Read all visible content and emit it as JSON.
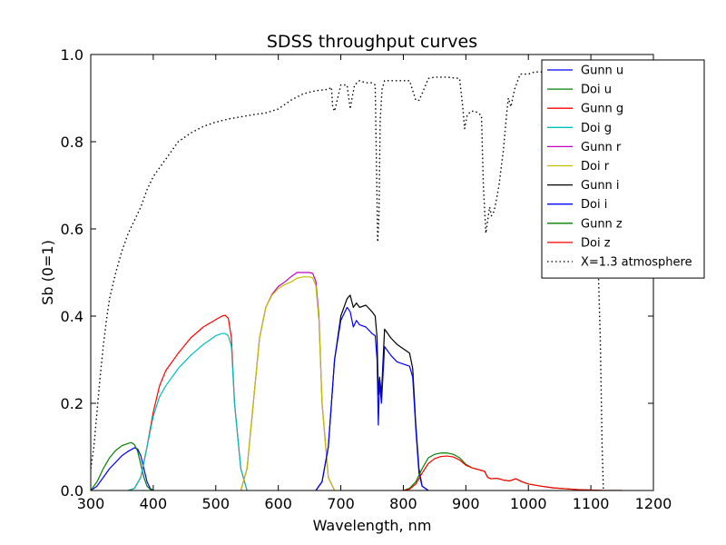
{
  "chart_data": {
    "type": "line",
    "title": "SDSS throughput curves",
    "xlabel": "Wavelength, nm",
    "ylabel": "Sb (0=1)",
    "xlim": [
      300,
      1200
    ],
    "ylim": [
      0.0,
      1.0
    ],
    "xticks": [
      300,
      400,
      500,
      600,
      700,
      800,
      900,
      1000,
      1100,
      1200
    ],
    "xtick_labels": [
      "300",
      "400",
      "500",
      "600",
      "700",
      "800",
      "900",
      "1000",
      "1100",
      "1200"
    ],
    "yticks": [
      0.0,
      0.2,
      0.4,
      0.6,
      0.8,
      1.0
    ],
    "ytick_labels": [
      "0.0",
      "0.2",
      "0.4",
      "0.6",
      "0.8",
      "1.0"
    ],
    "grid": false,
    "legend_position": "top-right",
    "series": [
      {
        "name": "Gunn u",
        "color": "#0000ff",
        "dash": "solid",
        "x": [
          300,
          310,
          320,
          330,
          340,
          350,
          360,
          370,
          375,
          380,
          385,
          390,
          395,
          400
        ],
        "y": [
          0.0,
          0.01,
          0.03,
          0.05,
          0.065,
          0.08,
          0.09,
          0.098,
          0.095,
          0.08,
          0.05,
          0.02,
          0.005,
          0.0
        ]
      },
      {
        "name": "Doi u",
        "color": "#008000",
        "dash": "solid",
        "x": [
          300,
          310,
          320,
          330,
          340,
          350,
          360,
          365,
          370,
          375,
          380,
          385,
          390,
          395,
          400
        ],
        "y": [
          0.0,
          0.02,
          0.05,
          0.075,
          0.092,
          0.103,
          0.108,
          0.11,
          0.105,
          0.09,
          0.06,
          0.03,
          0.01,
          0.003,
          0.0
        ]
      },
      {
        "name": "Gunn g",
        "color": "#ff0000",
        "dash": "solid",
        "x": [
          360,
          370,
          380,
          390,
          400,
          410,
          420,
          440,
          460,
          480,
          500,
          510,
          515,
          520,
          525,
          530,
          540,
          550
        ],
        "y": [
          0.0,
          0.005,
          0.03,
          0.1,
          0.18,
          0.24,
          0.275,
          0.315,
          0.35,
          0.375,
          0.392,
          0.4,
          0.402,
          0.395,
          0.35,
          0.2,
          0.05,
          0.0
        ]
      },
      {
        "name": "Doi g",
        "color": "#00bfbf",
        "dash": "solid",
        "x": [
          360,
          370,
          380,
          390,
          400,
          410,
          420,
          440,
          460,
          480,
          500,
          510,
          515,
          520,
          525,
          530,
          540,
          550
        ],
        "y": [
          0.0,
          0.005,
          0.03,
          0.1,
          0.17,
          0.215,
          0.24,
          0.28,
          0.31,
          0.335,
          0.355,
          0.36,
          0.36,
          0.355,
          0.33,
          0.2,
          0.05,
          0.0
        ]
      },
      {
        "name": "Gunn r",
        "color": "#bf00bf",
        "dash": "solid",
        "x": [
          540,
          550,
          560,
          570,
          580,
          590,
          600,
          610,
          620,
          630,
          640,
          650,
          655,
          660,
          665,
          670,
          680,
          690
        ],
        "y": [
          0.0,
          0.05,
          0.2,
          0.35,
          0.42,
          0.45,
          0.468,
          0.478,
          0.49,
          0.5,
          0.5,
          0.5,
          0.498,
          0.48,
          0.4,
          0.2,
          0.03,
          0.0
        ]
      },
      {
        "name": "Doi r",
        "color": "#bfbf00",
        "dash": "solid",
        "x": [
          540,
          550,
          560,
          570,
          580,
          590,
          600,
          610,
          620,
          630,
          640,
          650,
          655,
          660,
          665,
          670,
          680,
          690
        ],
        "y": [
          0.0,
          0.05,
          0.2,
          0.35,
          0.42,
          0.448,
          0.463,
          0.472,
          0.478,
          0.487,
          0.49,
          0.49,
          0.488,
          0.47,
          0.39,
          0.2,
          0.03,
          0.0
        ]
      },
      {
        "name": "Gunn i",
        "color": "#000000",
        "dash": "solid",
        "x": [
          660,
          670,
          680,
          690,
          700,
          710,
          715,
          720,
          725,
          730,
          740,
          750,
          755,
          758,
          760,
          762,
          765,
          770,
          780,
          790,
          800,
          810,
          815,
          820,
          825,
          830,
          840
        ],
        "y": [
          0.0,
          0.02,
          0.1,
          0.3,
          0.4,
          0.44,
          0.448,
          0.42,
          0.43,
          0.42,
          0.425,
          0.41,
          0.4,
          0.35,
          0.22,
          0.26,
          0.22,
          0.37,
          0.35,
          0.335,
          0.325,
          0.315,
          0.28,
          0.15,
          0.05,
          0.01,
          0.0
        ]
      },
      {
        "name": "Doi i",
        "color": "#0000ff",
        "dash": "solid",
        "x": [
          660,
          670,
          680,
          690,
          700,
          710,
          715,
          720,
          725,
          730,
          740,
          750,
          755,
          758,
          760,
          762,
          765,
          770,
          780,
          790,
          800,
          810,
          815,
          820,
          825,
          830,
          840
        ],
        "y": [
          0.0,
          0.02,
          0.1,
          0.3,
          0.39,
          0.42,
          0.41,
          0.375,
          0.39,
          0.38,
          0.375,
          0.36,
          0.355,
          0.3,
          0.15,
          0.25,
          0.2,
          0.33,
          0.31,
          0.295,
          0.29,
          0.285,
          0.26,
          0.14,
          0.04,
          0.01,
          0.0
        ]
      },
      {
        "name": "Gunn z",
        "color": "#008000",
        "dash": "solid",
        "x": [
          800,
          810,
          820,
          830,
          840,
          850,
          860,
          870,
          880,
          890,
          900,
          910,
          920,
          930,
          935,
          940,
          950,
          960,
          970,
          980,
          990,
          1000,
          1020,
          1040,
          1060,
          1080,
          1100,
          1120,
          1150
        ],
        "y": [
          0.0,
          0.005,
          0.02,
          0.05,
          0.075,
          0.083,
          0.086,
          0.086,
          0.083,
          0.075,
          0.06,
          0.052,
          0.048,
          0.044,
          0.03,
          0.027,
          0.028,
          0.024,
          0.022,
          0.027,
          0.02,
          0.015,
          0.01,
          0.006,
          0.004,
          0.002,
          0.001,
          0.0,
          0.0
        ]
      },
      {
        "name": "Doi z",
        "color": "#ff0000",
        "dash": "solid",
        "x": [
          800,
          810,
          820,
          830,
          840,
          850,
          860,
          870,
          880,
          890,
          900,
          910,
          920,
          930,
          935,
          940,
          950,
          960,
          970,
          980,
          990,
          1000,
          1020,
          1040,
          1060,
          1080,
          1100,
          1120,
          1150
        ],
        "y": [
          0.0,
          0.003,
          0.015,
          0.04,
          0.062,
          0.073,
          0.078,
          0.079,
          0.077,
          0.07,
          0.058,
          0.052,
          0.048,
          0.044,
          0.03,
          0.027,
          0.028,
          0.024,
          0.022,
          0.027,
          0.02,
          0.015,
          0.01,
          0.006,
          0.004,
          0.002,
          0.001,
          0.0,
          0.0
        ]
      },
      {
        "name": "X=1.3 atmosphere",
        "color": "#000000",
        "dash": "dotted",
        "x": [
          300,
          305,
          310,
          315,
          320,
          325,
          330,
          340,
          350,
          360,
          370,
          380,
          390,
          400,
          420,
          440,
          460,
          480,
          500,
          520,
          540,
          560,
          580,
          600,
          620,
          640,
          660,
          680,
          685,
          687,
          690,
          695,
          700,
          710,
          715,
          718,
          722,
          730,
          740,
          750,
          755,
          759,
          761,
          763,
          766,
          770,
          780,
          790,
          800,
          810,
          820,
          825,
          830,
          840,
          850,
          870,
          890,
          895,
          898,
          902,
          908,
          915,
          925,
          928,
          932,
          935,
          938,
          941,
          945,
          948,
          953,
          960,
          965,
          968,
          972,
          978,
          983,
          987,
          990,
          995,
          1000,
          1010,
          1020,
          1040,
          1060,
          1080,
          1090,
          1100,
          1105,
          1110,
          1115,
          1118,
          1120
        ],
        "y": [
          0.05,
          0.1,
          0.18,
          0.26,
          0.33,
          0.39,
          0.44,
          0.5,
          0.55,
          0.59,
          0.62,
          0.65,
          0.69,
          0.72,
          0.76,
          0.8,
          0.82,
          0.835,
          0.845,
          0.852,
          0.857,
          0.862,
          0.866,
          0.875,
          0.895,
          0.91,
          0.917,
          0.92,
          0.925,
          0.88,
          0.87,
          0.9,
          0.93,
          0.93,
          0.875,
          0.9,
          0.93,
          0.94,
          0.935,
          0.935,
          0.93,
          0.57,
          0.63,
          0.85,
          0.92,
          0.94,
          0.94,
          0.94,
          0.94,
          0.94,
          0.895,
          0.895,
          0.91,
          0.945,
          0.948,
          0.948,
          0.945,
          0.88,
          0.83,
          0.86,
          0.87,
          0.87,
          0.86,
          0.7,
          0.59,
          0.62,
          0.65,
          0.63,
          0.64,
          0.66,
          0.7,
          0.78,
          0.86,
          0.9,
          0.88,
          0.92,
          0.94,
          0.955,
          0.955,
          0.955,
          0.955,
          0.96,
          0.96,
          0.96,
          0.96,
          0.96,
          0.96,
          0.96,
          0.9,
          0.6,
          0.35,
          0.1,
          0.0
        ]
      }
    ]
  }
}
